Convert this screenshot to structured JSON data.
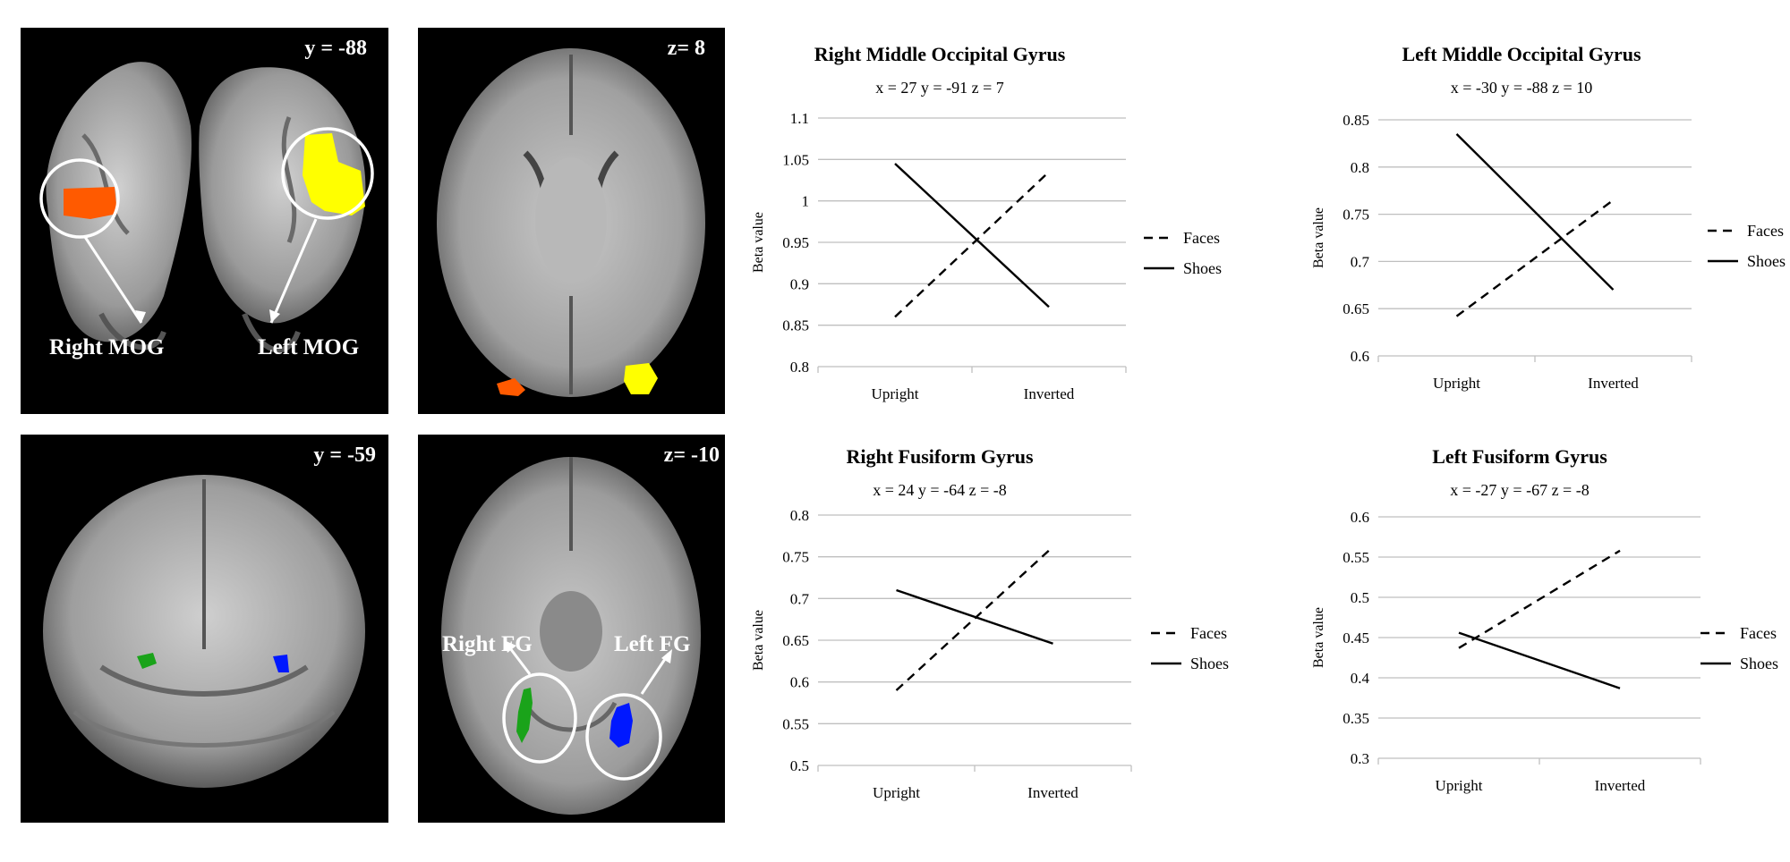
{
  "brain_panels": [
    {
      "slice": "y = -88",
      "labels": [
        "Right MOG",
        "Left MOG"
      ]
    },
    {
      "slice": "z= 8",
      "labels": []
    },
    {
      "slice": "y = -59",
      "labels": []
    },
    {
      "slice": "z= -10",
      "labels": [
        "Right FG",
        "Left FG"
      ]
    }
  ],
  "colors": {
    "right_mog": "#ff5a00",
    "left_mog": "#ffff00",
    "right_fg": "#1aa31a",
    "left_fg": "#0018ff",
    "gridline": "#bfbfbf"
  },
  "chart_data": [
    {
      "type": "line",
      "title": "Right Middle Occipital Gyrus",
      "subtitle": "x = 27 y = -91 z = 7",
      "ylabel": "Beta value",
      "categories": [
        "Upright",
        "Inverted"
      ],
      "ylim": [
        0.8,
        1.1
      ],
      "yticks": [
        "0.8",
        "0.85",
        "0.9",
        "0.95",
        "1",
        "1.05",
        "1.1"
      ],
      "series": [
        {
          "name": "Faces",
          "style": "dashed",
          "values": [
            0.86,
            1.035
          ]
        },
        {
          "name": "Shoes",
          "style": "solid",
          "values": [
            1.045,
            0.872
          ]
        }
      ],
      "legend": "right"
    },
    {
      "type": "line",
      "title": "Left Middle Occipital Gyrus",
      "subtitle": "x = -30 y = -88 z = 10",
      "ylabel": "Beta value",
      "categories": [
        "Upright",
        "Inverted"
      ],
      "ylim": [
        0.6,
        0.85
      ],
      "yticks": [
        "0.6",
        "0.65",
        "0.7",
        "0.75",
        "0.8",
        "0.85"
      ],
      "series": [
        {
          "name": "Faces",
          "style": "dashed",
          "values": [
            0.642,
            0.765
          ]
        },
        {
          "name": "Shoes",
          "style": "solid",
          "values": [
            0.835,
            0.67
          ]
        }
      ],
      "legend": "right"
    },
    {
      "type": "line",
      "title": "Right Fusiform Gyrus",
      "subtitle": "x = 24 y = -64 z = -8",
      "ylabel": "Beta value",
      "categories": [
        "Upright",
        "Inverted"
      ],
      "ylim": [
        0.5,
        0.8
      ],
      "yticks": [
        "0.5",
        "0.55",
        "0.6",
        "0.65",
        "0.7",
        "0.75",
        "0.8"
      ],
      "series": [
        {
          "name": "Faces",
          "style": "dashed",
          "values": [
            0.59,
            0.762
          ]
        },
        {
          "name": "Shoes",
          "style": "solid",
          "values": [
            0.71,
            0.646
          ]
        }
      ],
      "legend": "right"
    },
    {
      "type": "line",
      "title": "Left Fusiform Gyrus",
      "subtitle": "x = -27 y = -67 z = -8",
      "ylabel": "Beta value",
      "categories": [
        "Upright",
        "Inverted"
      ],
      "ylim": [
        0.3,
        0.6
      ],
      "yticks": [
        "0.3",
        "0.35",
        "0.4",
        "0.45",
        "0.5",
        "0.55",
        "0.6"
      ],
      "series": [
        {
          "name": "Faces",
          "style": "dashed",
          "values": [
            0.437,
            0.558
          ]
        },
        {
          "name": "Shoes",
          "style": "solid",
          "values": [
            0.456,
            0.387
          ]
        }
      ],
      "legend": "right"
    }
  ]
}
